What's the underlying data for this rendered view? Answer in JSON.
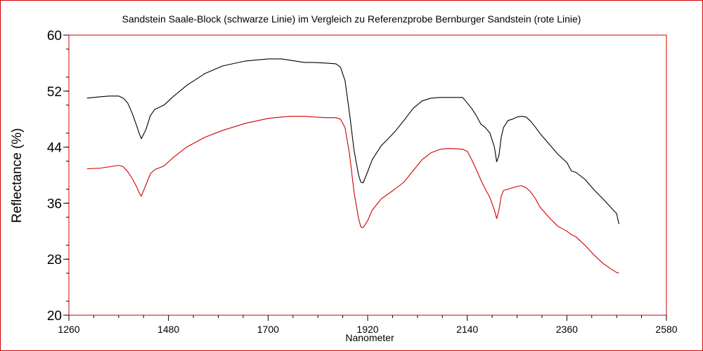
{
  "chart_data": {
    "type": "line",
    "title": "Sandstein Saale-Block (schwarze Linie) im Vergleich zu Referenzprobe Bernburger Sandstein (rote Linie)",
    "xlabel": "Nanometer",
    "ylabel": "Reflectance (%)",
    "xlim": [
      1260,
      2580
    ],
    "ylim": [
      20,
      60
    ],
    "x_ticks": [
      "1260",
      "1480",
      "1700",
      "1920",
      "2140",
      "2360",
      "2580"
    ],
    "y_ticks": [
      "60",
      "52",
      "44",
      "36",
      "28",
      "20"
    ],
    "grid": false,
    "series": [
      {
        "color": "#000000",
        "x": [
          1300,
          1330,
          1350,
          1370,
          1380,
          1390,
          1400,
          1410,
          1415,
          1420,
          1430,
          1440,
          1450,
          1470,
          1490,
          1520,
          1560,
          1600,
          1650,
          1700,
          1730,
          1750,
          1780,
          1800,
          1830,
          1850,
          1860,
          1870,
          1880,
          1890,
          1900,
          1905,
          1910,
          1920,
          1930,
          1950,
          1980,
          2000,
          2020,
          2040,
          2060,
          2080,
          2100,
          2130,
          2140,
          2150,
          2160,
          2170,
          2180,
          2190,
          2200,
          2205,
          2210,
          2215,
          2220,
          2230,
          2240,
          2250,
          2260,
          2270,
          2280,
          2290,
          2300,
          2320,
          2340,
          2360,
          2370,
          2380,
          2400,
          2420,
          2440,
          2460,
          2470,
          2475
        ],
        "values": [
          51.0,
          51.2,
          51.3,
          51.3,
          51.0,
          50.3,
          48.8,
          47.0,
          46.0,
          45.2,
          46.5,
          48.5,
          49.4,
          50.0,
          51.2,
          52.8,
          54.5,
          55.6,
          56.3,
          56.6,
          56.6,
          56.4,
          56.1,
          56.1,
          56.0,
          55.9,
          55.4,
          53.5,
          48.8,
          43.5,
          40.0,
          39.0,
          38.9,
          40.5,
          42.2,
          44.2,
          46.2,
          47.8,
          49.5,
          50.6,
          51.0,
          51.1,
          51.1,
          51.1,
          50.3,
          49.5,
          48.5,
          47.3,
          46.8,
          46.0,
          44.0,
          41.9,
          42.8,
          45.4,
          46.8,
          47.8,
          48.0,
          48.3,
          48.4,
          48.3,
          47.7,
          46.9,
          46.0,
          44.5,
          43.0,
          41.8,
          40.6,
          40.4,
          39.4,
          37.9,
          36.6,
          35.2,
          34.5,
          33.0
        ]
      },
      {
        "color": "#d00000",
        "x": [
          1300,
          1330,
          1350,
          1370,
          1380,
          1390,
          1400,
          1410,
          1415,
          1420,
          1430,
          1440,
          1450,
          1470,
          1490,
          1520,
          1560,
          1600,
          1650,
          1700,
          1730,
          1750,
          1780,
          1800,
          1830,
          1850,
          1860,
          1870,
          1880,
          1890,
          1900,
          1905,
          1910,
          1920,
          1930,
          1950,
          1980,
          2000,
          2020,
          2040,
          2060,
          2080,
          2100,
          2130,
          2140,
          2150,
          2160,
          2170,
          2180,
          2190,
          2200,
          2205,
          2210,
          2215,
          2220,
          2230,
          2240,
          2250,
          2260,
          2270,
          2280,
          2290,
          2300,
          2320,
          2340,
          2360,
          2370,
          2380,
          2400,
          2420,
          2440,
          2460,
          2470,
          2475
        ],
        "values": [
          40.9,
          41.0,
          41.2,
          41.4,
          41.2,
          40.5,
          39.5,
          38.3,
          37.5,
          37.0,
          38.6,
          40.2,
          40.8,
          41.3,
          42.5,
          44.0,
          45.4,
          46.4,
          47.4,
          48.1,
          48.3,
          48.4,
          48.4,
          48.3,
          48.2,
          48.2,
          48.0,
          46.8,
          43.0,
          37.5,
          33.8,
          32.6,
          32.5,
          33.5,
          35.0,
          36.6,
          38.0,
          39.0,
          40.6,
          42.2,
          43.2,
          43.7,
          43.8,
          43.7,
          43.4,
          42.2,
          40.8,
          39.3,
          38.0,
          36.8,
          35.0,
          33.8,
          35.0,
          37.0,
          37.8,
          38.0,
          38.2,
          38.4,
          38.5,
          38.2,
          37.6,
          36.7,
          35.5,
          34.0,
          32.7,
          32.0,
          31.5,
          31.2,
          30.0,
          28.6,
          27.4,
          26.5,
          26.1,
          26.0
        ]
      }
    ]
  }
}
